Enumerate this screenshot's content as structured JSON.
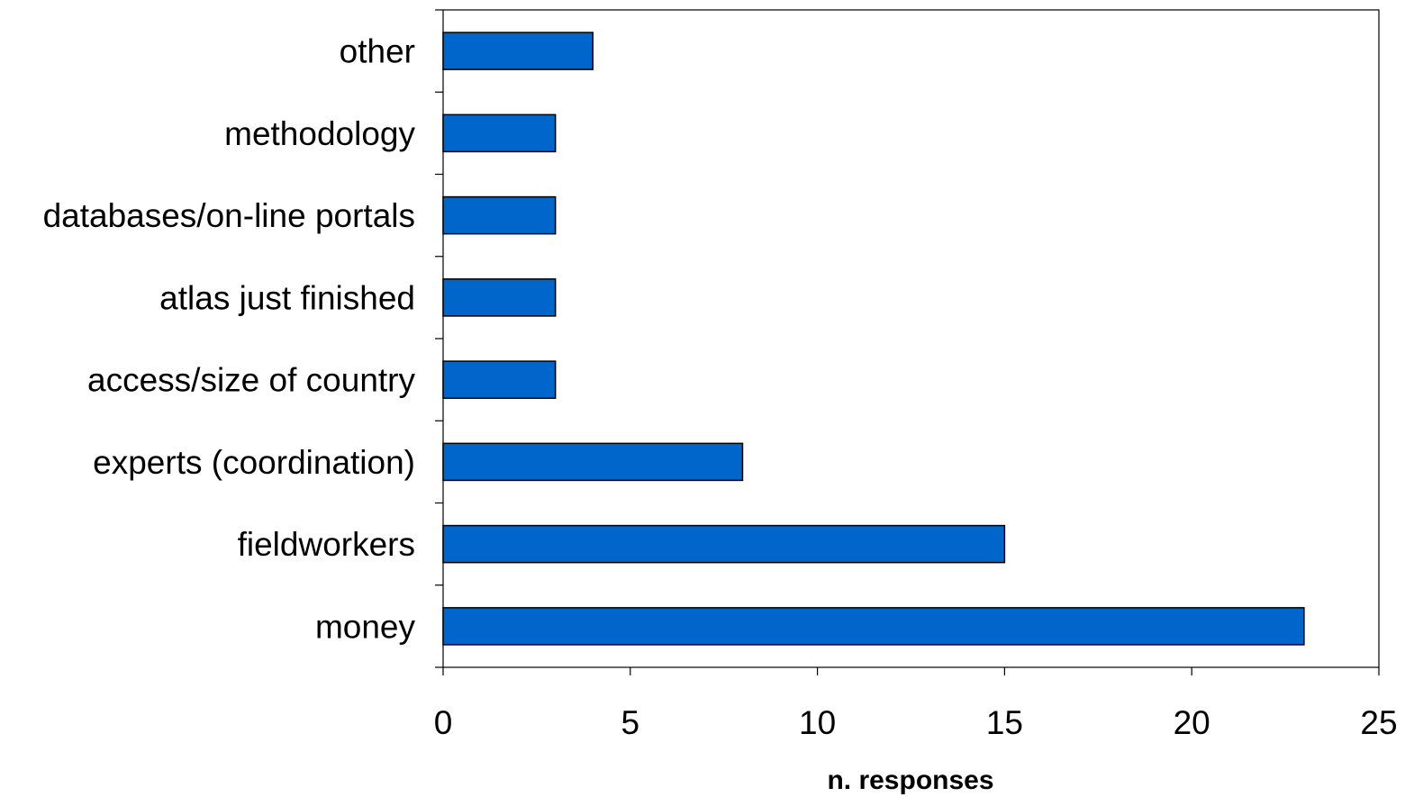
{
  "chart_data": {
    "type": "bar",
    "orientation": "horizontal",
    "title": "",
    "xlabel": "n. responses",
    "ylabel": "",
    "xlim": [
      0,
      25
    ],
    "x_ticks": [
      "0",
      "5",
      "10",
      "15",
      "20",
      "25"
    ],
    "categories": [
      "other",
      "methodology",
      "databases/on-line portals",
      "atlas just finished",
      "access/size of country",
      "experts (coordination)",
      "fieldworkers",
      "money"
    ],
    "values": [
      4,
      3,
      3,
      3,
      3,
      8,
      15,
      23
    ],
    "bar_color": "#0066CC",
    "bar_edge_color": "#000000",
    "grid": false,
    "legend": "none"
  }
}
